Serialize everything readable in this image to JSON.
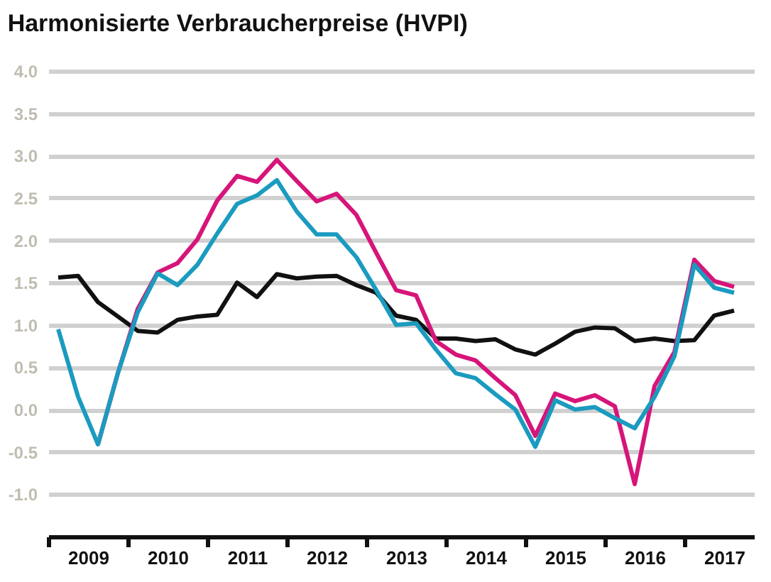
{
  "chart_data": {
    "type": "line",
    "title": "Harmonisierte Verbraucherpreise (HVPI)",
    "x": [
      2009.125,
      2009.375,
      2009.625,
      2009.875,
      2010.125,
      2010.375,
      2010.625,
      2010.875,
      2011.125,
      2011.375,
      2011.625,
      2011.875,
      2012.125,
      2012.375,
      2012.625,
      2012.875,
      2013.125,
      2013.375,
      2013.625,
      2013.875,
      2014.125,
      2014.375,
      2014.625,
      2014.875,
      2015.125,
      2015.375,
      2015.625,
      2015.875,
      2016.125,
      2016.375,
      2016.625,
      2016.875,
      2017.125,
      2017.375,
      2017.625
    ],
    "series": [
      {
        "color": "#111111",
        "values": [
          1.56,
          1.58,
          1.27,
          1.1,
          0.93,
          0.91,
          1.06,
          1.1,
          1.12,
          1.5,
          1.33,
          1.6,
          1.55,
          1.57,
          1.58,
          1.47,
          1.38,
          1.11,
          1.06,
          0.84,
          0.84,
          0.81,
          0.83,
          0.71,
          0.65,
          0.78,
          0.92,
          0.97,
          0.96,
          0.81,
          0.84,
          0.81,
          0.82,
          1.11,
          1.17
        ]
      },
      {
        "color": "#d6157a",
        "values": [
          null,
          null,
          -0.41,
          0.43,
          1.19,
          1.62,
          1.73,
          2.01,
          2.47,
          2.76,
          2.69,
          2.95,
          2.7,
          2.46,
          2.55,
          2.3,
          1.85,
          1.41,
          1.35,
          0.81,
          0.65,
          0.58,
          0.37,
          0.17,
          -0.31,
          0.19,
          0.1,
          0.17,
          0.04,
          -0.88,
          0.28,
          0.68,
          1.77,
          1.52,
          1.45
        ]
      },
      {
        "color": "#1a9bbf",
        "values": [
          0.95,
          0.15,
          -0.41,
          0.43,
          1.15,
          1.61,
          1.47,
          1.71,
          2.08,
          2.43,
          2.53,
          2.71,
          2.34,
          2.07,
          2.07,
          1.8,
          1.41,
          1.0,
          1.02,
          0.71,
          0.43,
          0.37,
          0.18,
          0.0,
          -0.44,
          0.11,
          0.0,
          0.03,
          -0.1,
          -0.22,
          0.15,
          0.63,
          1.71,
          1.44,
          1.38
        ]
      }
    ],
    "xlim": [
      2009,
      2017.875
    ],
    "xticks": [
      {
        "value": 2009,
        "label": null
      },
      {
        "value": 2009.5,
        "label": "2009"
      },
      {
        "value": 2010,
        "label": null
      },
      {
        "value": 2010.5,
        "label": "2010"
      },
      {
        "value": 2011,
        "label": null
      },
      {
        "value": 2011.5,
        "label": "2011"
      },
      {
        "value": 2012,
        "label": null
      },
      {
        "value": 2012.5,
        "label": "2012"
      },
      {
        "value": 2013,
        "label": null
      },
      {
        "value": 2013.5,
        "label": "2013"
      },
      {
        "value": 2014,
        "label": null
      },
      {
        "value": 2014.5,
        "label": "2014"
      },
      {
        "value": 2015,
        "label": null
      },
      {
        "value": 2015.5,
        "label": "2015"
      },
      {
        "value": 2016,
        "label": null
      },
      {
        "value": 2016.5,
        "label": "2016"
      },
      {
        "value": 2017,
        "label": null
      },
      {
        "value": 2017.5,
        "label": "2017"
      }
    ],
    "ylim": [
      -1.5,
      4.0
    ],
    "yticks": [
      {
        "value": -1,
        "label": "-1.0"
      },
      {
        "value": -0.5,
        "label": "-0.5"
      },
      {
        "value": 0,
        "label": "0.0"
      },
      {
        "value": 0.5,
        "label": "0.5"
      },
      {
        "value": 1,
        "label": "1.0"
      },
      {
        "value": 1.5,
        "label": "1.5"
      },
      {
        "value": 2,
        "label": "2.0"
      },
      {
        "value": 2.5,
        "label": "2.5"
      },
      {
        "value": 3,
        "label": "3.0"
      },
      {
        "value": 3.5,
        "label": "3.5"
      },
      {
        "value": 4,
        "label": "4.0"
      }
    ],
    "grid": "y",
    "legend": false,
    "marker": "none",
    "line_style": "solid"
  }
}
